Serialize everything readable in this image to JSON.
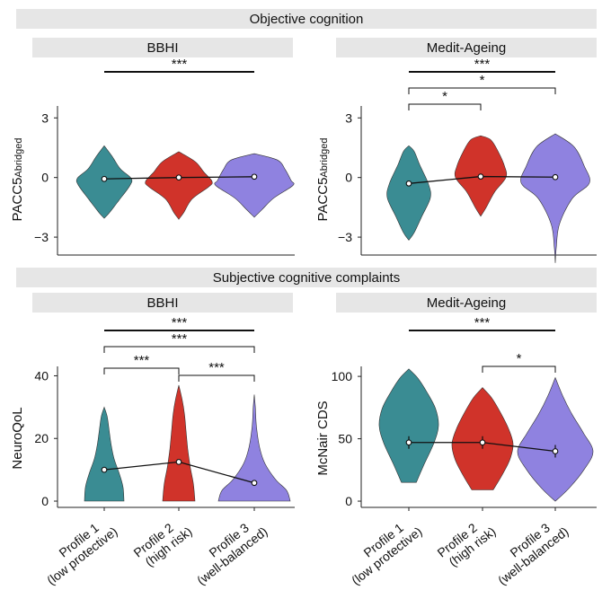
{
  "sections": [
    {
      "title": "Objective cognition"
    },
    {
      "title": "Subjective cognitive complaints"
    }
  ],
  "profile_labels": [
    [
      "Profile 1",
      "(low protective)"
    ],
    [
      "Profile 2",
      "(high risk)"
    ],
    [
      "Profile 3",
      "(well-balanced)"
    ]
  ],
  "colors": {
    "profile1": "#3a8c93",
    "profile2": "#d0332a",
    "profile3": "#8f82e0",
    "band": "#e6e6e6"
  },
  "chart_data": [
    {
      "type": "violin",
      "section": "Objective cognition",
      "title": "BBHI",
      "ylabel": "PACC5",
      "ylabel_sub": "Abridged",
      "ylim": [
        -3.9,
        3.6
      ],
      "yticks": [
        3,
        0,
        -3
      ],
      "ytick_labels": [
        "3",
        "0",
        "−3"
      ],
      "categories": [
        "Profile 1 (low protective)",
        "Profile 2 (high risk)",
        "Profile 3 (well-balanced)"
      ],
      "medians": [
        -0.07,
        0.0,
        0.04
      ],
      "ranges": [
        [
          -2.05,
          1.6
        ],
        [
          -2.1,
          1.3
        ],
        [
          -2.0,
          1.2
        ]
      ],
      "significance": [
        {
          "from": 0,
          "to": 2,
          "label": "***",
          "weight": "bold"
        }
      ]
    },
    {
      "type": "violin",
      "section": "Objective cognition",
      "title": "Medit-Ageing",
      "ylabel": "PACC5",
      "ylabel_sub": "Abridged",
      "ylim": [
        -3.9,
        3.6
      ],
      "yticks": [
        3,
        0,
        -3
      ],
      "ytick_labels": [
        "3",
        "0",
        "−3"
      ],
      "categories": [
        "Profile 1 (low protective)",
        "Profile 2 (high risk)",
        "Profile 3 (well-balanced)"
      ],
      "medians": [
        -0.3,
        0.05,
        0.02
      ],
      "ranges": [
        [
          -3.15,
          1.6
        ],
        [
          -1.95,
          2.1
        ],
        [
          -4.3,
          2.2
        ]
      ],
      "significance": [
        {
          "from": 0,
          "to": 2,
          "label": "***",
          "weight": "bold"
        },
        {
          "from": 0,
          "to": 2,
          "label": "*",
          "weight": "thin"
        },
        {
          "from": 0,
          "to": 1,
          "label": "*",
          "weight": "thin"
        }
      ]
    },
    {
      "type": "violin",
      "section": "Subjective cognitive complaints",
      "title": "BBHI",
      "ylabel": "NeuroQoL",
      "ylabel_sub": "",
      "ylim": [
        -2,
        43
      ],
      "yticks": [
        40,
        20,
        0
      ],
      "ytick_labels": [
        "40",
        "20",
        "0"
      ],
      "categories": [
        "Profile 1 (low protective)",
        "Profile 2 (high risk)",
        "Profile 3 (well-balanced)"
      ],
      "medians": [
        10,
        12.5,
        5.8
      ],
      "ranges": [
        [
          0,
          30
        ],
        [
          0,
          37
        ],
        [
          0,
          34
        ]
      ],
      "significance": [
        {
          "from": 0,
          "to": 2,
          "label": "***",
          "weight": "bold"
        },
        {
          "from": 0,
          "to": 2,
          "label": "***",
          "weight": "thin"
        },
        {
          "from": 0,
          "to": 1,
          "label": "***",
          "weight": "thin"
        },
        {
          "from": 1,
          "to": 2,
          "label": "***",
          "weight": "thin"
        }
      ]
    },
    {
      "type": "violin",
      "section": "Subjective cognitive complaints",
      "title": "Medit-Ageing",
      "ylabel": "McNair CDS",
      "ylabel_sub": "",
      "ylim": [
        -5,
        108
      ],
      "yticks": [
        100,
        50,
        0
      ],
      "ytick_labels": [
        "100",
        "50",
        "0"
      ],
      "categories": [
        "Profile 1 (low protective)",
        "Profile 2 (high risk)",
        "Profile 3 (well-balanced)"
      ],
      "medians": [
        47,
        47,
        40
      ],
      "ranges": [
        [
          15,
          106
        ],
        [
          9,
          91
        ],
        [
          0,
          99
        ]
      ],
      "significance": [
        {
          "from": 0,
          "to": 2,
          "label": "***",
          "weight": "bold"
        },
        {
          "from": 1,
          "to": 2,
          "label": "*",
          "weight": "thin"
        }
      ]
    }
  ]
}
